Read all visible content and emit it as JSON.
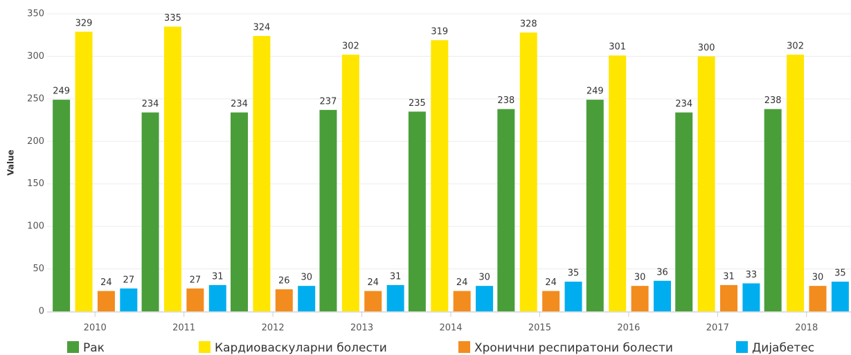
{
  "chart_data": {
    "type": "bar",
    "y_label": "Value",
    "categories": [
      "2010",
      "2011",
      "2012",
      "2013",
      "2014",
      "2015",
      "2016",
      "2017",
      "2018"
    ],
    "series": [
      {
        "name": "Рак",
        "color": "#4a9e3a",
        "values": [
          249,
          234,
          234,
          237,
          235,
          238,
          249,
          234,
          238
        ]
      },
      {
        "name": "Кардиоваскуларни болести",
        "color": "#ffe600",
        "values": [
          329,
          335,
          324,
          302,
          319,
          328,
          301,
          300,
          302
        ]
      },
      {
        "name": "Хронични респиратони болести",
        "color": "#f28c1e",
        "values": [
          24,
          27,
          26,
          24,
          24,
          24,
          30,
          31,
          30
        ]
      },
      {
        "name": "Дијабетес",
        "color": "#00aeef",
        "values": [
          27,
          31,
          30,
          31,
          30,
          35,
          36,
          33,
          35
        ]
      }
    ],
    "ylim": [
      0,
      350
    ],
    "yticks": [
      0,
      50,
      100,
      150,
      200,
      250,
      300,
      350
    ],
    "grid": true,
    "legend": "bottom"
  }
}
